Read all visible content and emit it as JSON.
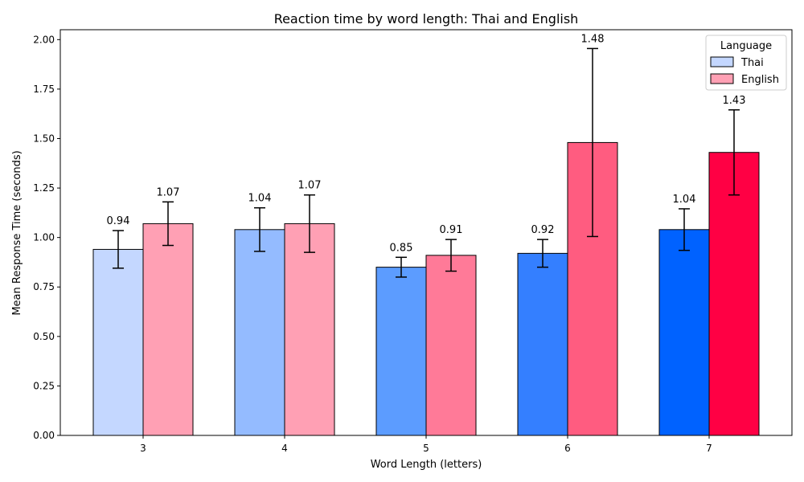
{
  "chart_data": {
    "type": "bar",
    "title": "Reaction time by word length: Thai and English",
    "xlabel": "Word Length (letters)",
    "ylabel": "Mean Response Time (seconds)",
    "categories": [
      "3",
      "4",
      "5",
      "6",
      "7"
    ],
    "ylim": [
      0,
      2.05
    ],
    "yticks": [
      "0.00",
      "0.25",
      "0.50",
      "0.75",
      "1.00",
      "1.25",
      "1.50",
      "1.75",
      "2.00"
    ],
    "grid": false,
    "legend": {
      "title": "Language",
      "placement": "top-right"
    },
    "series": [
      {
        "name": "Thai",
        "values": [
          0.94,
          1.04,
          0.85,
          0.92,
          1.04
        ],
        "error": [
          0.095,
          0.11,
          0.05,
          0.07,
          0.105
        ],
        "data_labels": [
          "0.94",
          "1.04",
          "0.85",
          "0.92",
          "1.04"
        ],
        "colors": [
          "#c4d7ff",
          "#94bbff",
          "#5c9cff",
          "#347fff",
          "#0062ff"
        ],
        "legend_color": "#c4d7ff"
      },
      {
        "name": "English",
        "values": [
          1.07,
          1.07,
          0.91,
          1.48,
          1.43
        ],
        "error": [
          0.11,
          0.145,
          0.08,
          0.475,
          0.215
        ],
        "data_labels": [
          "1.07",
          "1.07",
          "0.91",
          "1.48",
          "1.43"
        ],
        "colors": [
          "#ffa0b4",
          "#ffa0b4",
          "#ff7a98",
          "#ff5c80",
          "#ff0044"
        ],
        "legend_color": "#ffa0b4"
      }
    ]
  }
}
